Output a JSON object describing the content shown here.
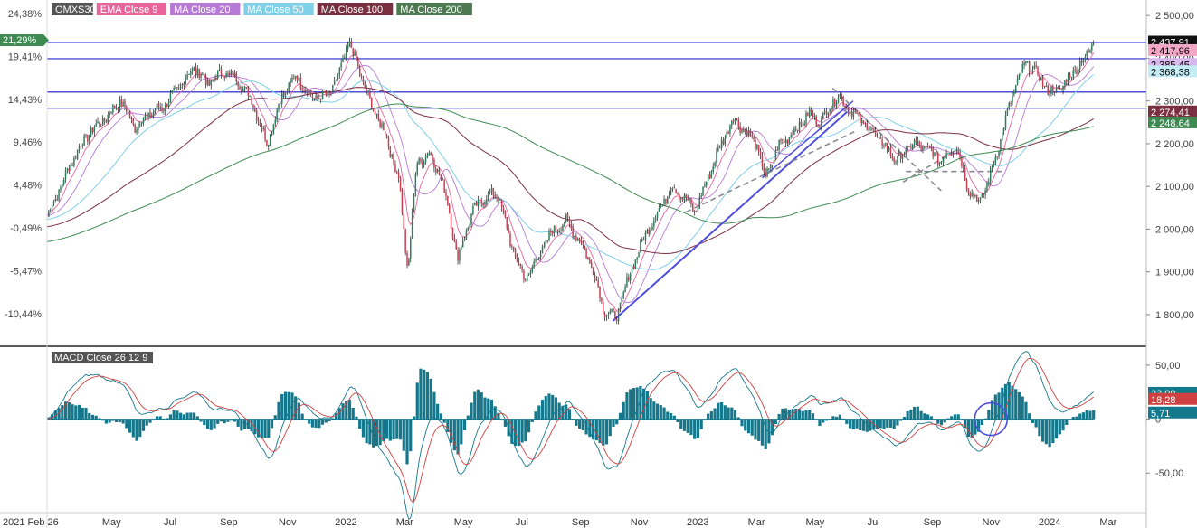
{
  "instrument": "OMXS30",
  "legend": [
    {
      "label": "OMXS30",
      "bg": "#555555"
    },
    {
      "label": "EMA Close 9",
      "bg": "#e8649a"
    },
    {
      "label": "MA Close 20",
      "bg": "#b779d6"
    },
    {
      "label": "MA Close 50",
      "bg": "#7fd0e8"
    },
    {
      "label": "MA Close 100",
      "bg": "#7a3040"
    },
    {
      "label": "MA Close 200",
      "bg": "#4e7a52"
    }
  ],
  "macd_label": "MACD Close 26 12 9",
  "colors": {
    "up": "#2e7d5b",
    "down": "#c83e52",
    "ema9": "#e8649a",
    "ma20": "#b779d6",
    "ma50": "#7fd0e8",
    "ma100": "#7a3040",
    "ma200": "#3f8a52",
    "trend": "#4f4fdc",
    "dash": "#8a8a96",
    "macd": "#14788c",
    "signal": "#d04040",
    "hist": "#14788c"
  },
  "chart_data": [
    {
      "type": "line",
      "panel": "price",
      "series_name": "OMXS30",
      "x_tick_labels": [
        "2021 Feb 26",
        "May",
        "Jul",
        "Sep",
        "Nov",
        "2022",
        "Mar",
        "May",
        "Jul",
        "Sep",
        "Nov",
        "2023",
        "Mar",
        "May",
        "Jul",
        "Sep",
        "Nov",
        "2024",
        "Mar"
      ],
      "x_tick_months": [
        0,
        2.2,
        4.2,
        6.2,
        8.2,
        10.2,
        12.2,
        14.2,
        16.2,
        18.2,
        20.2,
        22.2,
        24.2,
        26.2,
        28.2,
        30.2,
        32.2,
        34.2,
        36.2
      ],
      "y_right_ticks": [
        2500,
        2400,
        2300,
        2200,
        2100,
        2000,
        1900,
        1800
      ],
      "y_right_labels": [
        "2 500,00",
        "2 400,00",
        "2 300,00",
        "2 200,00",
        "2 100,00",
        "2 000,00",
        "1 900,00",
        "1 800,00"
      ],
      "y_left_labels": [
        "24,38%",
        "19,41%",
        "14,43%",
        "9,46%",
        "4,48%",
        "-0,49%",
        "-5,47%",
        "-10,44%"
      ],
      "left_badge": "21,29%",
      "price_badges": [
        {
          "value": 2437.91,
          "label": "2 437,91",
          "bg": "#111111",
          "fg": "#ffffff"
        },
        {
          "value": 2417.96,
          "label": "2 417,96",
          "bg": "#f2a7c6",
          "fg": "#000000"
        },
        {
          "value": 2385.45,
          "label": "2 385,45",
          "bg": "#d9b8ee",
          "fg": "#000000"
        },
        {
          "value": 2368.38,
          "label": "2 368,38",
          "bg": "#c3ecf5",
          "fg": "#000000"
        },
        {
          "value": 2274.41,
          "label": "2 274,41",
          "bg": "#7a3040",
          "fg": "#ffffff"
        },
        {
          "value": 2248.64,
          "label": "2 248,64",
          "bg": "#3f8a52",
          "fg": "#ffffff"
        }
      ],
      "horizontal_levels": [
        2437,
        2399,
        2321,
        2283
      ],
      "ylim": [
        1730,
        2530
      ],
      "key_points": [
        [
          0,
          2030
        ],
        [
          0.4,
          2090
        ],
        [
          1,
          2180
        ],
        [
          1.5,
          2230
        ],
        [
          2,
          2260
        ],
        [
          2.5,
          2300
        ],
        [
          3,
          2240
        ],
        [
          3.5,
          2270
        ],
        [
          4,
          2290
        ],
        [
          4.5,
          2330
        ],
        [
          5,
          2380
        ],
        [
          5.5,
          2340
        ],
        [
          6,
          2370
        ],
        [
          6.5,
          2350
        ],
        [
          7,
          2300
        ],
        [
          7.5,
          2200
        ],
        [
          8,
          2310
        ],
        [
          8.5,
          2360
        ],
        [
          9,
          2310
        ],
        [
          9.6,
          2310
        ],
        [
          10,
          2370
        ],
        [
          10.3,
          2440
        ],
        [
          10.7,
          2360
        ],
        [
          11,
          2300
        ],
        [
          11.5,
          2230
        ],
        [
          12,
          2120
        ],
        [
          12.3,
          1900
        ],
        [
          12.6,
          2150
        ],
        [
          13,
          2180
        ],
        [
          13.4,
          2130
        ],
        [
          13.7,
          2050
        ],
        [
          14,
          1930
        ],
        [
          14.5,
          2040
        ],
        [
          15,
          2080
        ],
        [
          15.4,
          2080
        ],
        [
          15.8,
          1970
        ],
        [
          16.3,
          1880
        ],
        [
          16.7,
          1930
        ],
        [
          17.2,
          1990
        ],
        [
          17.7,
          2020
        ],
        [
          18.2,
          1970
        ],
        [
          18.6,
          1910
        ],
        [
          19,
          1810
        ],
        [
          19.4,
          1790
        ],
        [
          20,
          1920
        ],
        [
          20.5,
          2000
        ],
        [
          21,
          2060
        ],
        [
          21.3,
          2100
        ],
        [
          21.8,
          2070
        ],
        [
          22.1,
          2040
        ],
        [
          22.6,
          2130
        ],
        [
          23,
          2200
        ],
        [
          23.4,
          2260
        ],
        [
          23.8,
          2230
        ],
        [
          24.2,
          2200
        ],
        [
          24.5,
          2120
        ],
        [
          25,
          2200
        ],
        [
          25.5,
          2230
        ],
        [
          26,
          2270
        ],
        [
          26.4,
          2250
        ],
        [
          26.7,
          2290
        ],
        [
          27,
          2310
        ],
        [
          27.5,
          2270
        ],
        [
          28,
          2240
        ],
        [
          28.5,
          2200
        ],
        [
          29,
          2160
        ],
        [
          29.5,
          2200
        ],
        [
          30,
          2190
        ],
        [
          30.5,
          2160
        ],
        [
          31,
          2200
        ],
        [
          31.4,
          2100
        ],
        [
          31.8,
          2060
        ],
        [
          32.2,
          2130
        ],
        [
          32.6,
          2230
        ],
        [
          33,
          2330
        ],
        [
          33.4,
          2390
        ],
        [
          33.8,
          2360
        ],
        [
          34.2,
          2320
        ],
        [
          34.6,
          2330
        ],
        [
          35,
          2370
        ],
        [
          35.4,
          2400
        ],
        [
          35.7,
          2440
        ]
      ],
      "moving_averages": [
        {
          "name": "EMA Close 9",
          "last": 2417.96
        },
        {
          "name": "MA Close 20",
          "last": 2385.45
        },
        {
          "name": "MA Close 50",
          "last": 2368.38
        },
        {
          "name": "MA Close 100",
          "last": 2274.41
        },
        {
          "name": "MA Close 200",
          "last": 2248.64
        }
      ]
    },
    {
      "type": "line",
      "panel": "macd",
      "series_name": "MACD Close 26 12 9",
      "y_ticks": [
        50,
        0,
        -50
      ],
      "y_labels": [
        "50,00",
        "0",
        "-50,00"
      ],
      "ylim": [
        -85,
        65
      ],
      "badges": [
        {
          "value": 23.99,
          "label": "23,99",
          "bg": "#14788c",
          "fg": "#ffffff"
        },
        {
          "value": 18.28,
          "label": "18,28",
          "bg": "#d04040",
          "fg": "#ffffff"
        },
        {
          "value": 5.71,
          "label": "5,71",
          "bg": "#14788c",
          "fg": "#ffffff"
        }
      ]
    }
  ]
}
